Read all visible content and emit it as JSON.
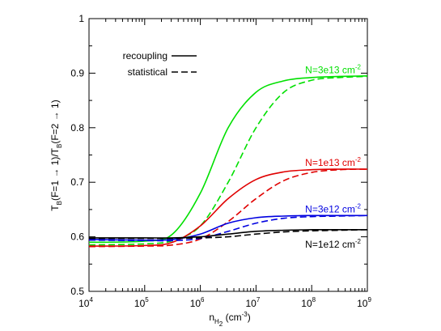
{
  "chart_data": {
    "type": "line",
    "x_scale": "log",
    "xlim": [
      10000,
      1000000000
    ],
    "ylim": [
      0.5,
      1.0
    ],
    "xlabel": {
      "base": "n",
      "subscript": "H",
      "subsubscript": "2",
      "units": " (cm",
      "units_exp": "-3",
      "units_end": ")"
    },
    "ylabel": "T_B(F=1 → 1)/T_B(F=2 → 1)",
    "ylabel_parts": {
      "t1": "T",
      "b1": "B",
      "m1": "(F=1 → 1)/T",
      "b2": "B",
      "m2": "(F=2 → 1)"
    },
    "x_ticks": [
      {
        "value": 10000,
        "base": "10",
        "exp": "4"
      },
      {
        "value": 100000,
        "base": "10",
        "exp": "5"
      },
      {
        "value": 1000000,
        "base": "10",
        "exp": "6"
      },
      {
        "value": 10000000,
        "base": "10",
        "exp": "7"
      },
      {
        "value": 100000000,
        "base": "10",
        "exp": "8"
      },
      {
        "value": 1000000000,
        "base": "10",
        "exp": "9"
      }
    ],
    "y_ticks": [
      {
        "value": 0.5,
        "label": "0.5"
      },
      {
        "value": 0.6,
        "label": "0.6"
      },
      {
        "value": 0.7,
        "label": "0.7"
      },
      {
        "value": 0.8,
        "label": "0.8"
      },
      {
        "value": 0.9,
        "label": "0.9"
      },
      {
        "value": 1.0,
        "label": "1"
      }
    ],
    "legend": {
      "placement": "top-left",
      "entries": [
        {
          "label": "recoupling",
          "style": "solid"
        },
        {
          "label": "statistical",
          "style": "dashed"
        }
      ]
    },
    "series": [
      {
        "key": "n3e13-recoupling",
        "color": "#00e000",
        "style": "solid",
        "x": [
          10000,
          100000,
          316228,
          1000000,
          3162278,
          10000000,
          31622777,
          100000000,
          316227766,
          1000000000
        ],
        "y": [
          0.59,
          0.592,
          0.605,
          0.68,
          0.8,
          0.865,
          0.886,
          0.892,
          0.894,
          0.895
        ]
      },
      {
        "key": "n3e13-statistical",
        "color": "#00e000",
        "style": "dashed",
        "x": [
          10000,
          100000,
          316228,
          1000000,
          3162278,
          10000000,
          31622777,
          100000000,
          316227766,
          1000000000
        ],
        "y": [
          0.585,
          0.587,
          0.593,
          0.62,
          0.7,
          0.8,
          0.865,
          0.887,
          0.892,
          0.894
        ]
      },
      {
        "key": "n1e13-recoupling",
        "color": "#e00000",
        "style": "solid",
        "x": [
          10000,
          100000,
          316228,
          1000000,
          3162278,
          10000000,
          31622777,
          100000000,
          316227766,
          1000000000
        ],
        "y": [
          0.583,
          0.584,
          0.59,
          0.62,
          0.67,
          0.705,
          0.719,
          0.723,
          0.724,
          0.724
        ]
      },
      {
        "key": "n1e13-statistical",
        "color": "#e00000",
        "style": "dashed",
        "x": [
          10000,
          100000,
          316228,
          1000000,
          3162278,
          10000000,
          31622777,
          100000000,
          316227766,
          1000000000
        ],
        "y": [
          0.582,
          0.583,
          0.585,
          0.596,
          0.628,
          0.67,
          0.703,
          0.718,
          0.723,
          0.724
        ]
      },
      {
        "key": "n3e12-recoupling",
        "color": "#0000e0",
        "style": "solid",
        "x": [
          10000,
          100000,
          316228,
          1000000,
          3162278,
          10000000,
          31622777,
          100000000,
          316227766,
          1000000000
        ],
        "y": [
          0.595,
          0.594,
          0.595,
          0.605,
          0.625,
          0.635,
          0.638,
          0.639,
          0.639,
          0.639
        ]
      },
      {
        "key": "n3e12-statistical",
        "color": "#0000e0",
        "style": "dashed",
        "x": [
          10000,
          100000,
          316228,
          1000000,
          3162278,
          10000000,
          31622777,
          100000000,
          316227766,
          1000000000
        ],
        "y": [
          0.594,
          0.593,
          0.593,
          0.597,
          0.61,
          0.625,
          0.634,
          0.637,
          0.638,
          0.639
        ]
      },
      {
        "key": "n1e12-recoupling",
        "color": "#000000",
        "style": "solid",
        "x": [
          10000,
          100000,
          316228,
          1000000,
          3162278,
          10000000,
          31622777,
          100000000,
          316227766,
          1000000000
        ],
        "y": [
          0.598,
          0.598,
          0.598,
          0.6,
          0.605,
          0.61,
          0.612,
          0.613,
          0.613,
          0.613
        ]
      },
      {
        "key": "n1e12-statistical",
        "color": "#000000",
        "style": "dashed",
        "x": [
          10000,
          100000,
          316228,
          1000000,
          3162278,
          10000000,
          31622777,
          100000000,
          316227766,
          1000000000
        ],
        "y": [
          0.597,
          0.597,
          0.597,
          0.598,
          0.6,
          0.605,
          0.609,
          0.611,
          0.612,
          0.613
        ]
      }
    ],
    "annotations": [
      {
        "key": "n3e13",
        "text": "N=3e13 cm",
        "exp": "-2",
        "color": "#00e000",
        "x": 100000000,
        "y": 0.9
      },
      {
        "key": "n1e13",
        "text": "N=1e13 cm",
        "exp": "-2",
        "color": "#e00000",
        "x": 100000000,
        "y": 0.73
      },
      {
        "key": "n3e12",
        "text": "N=3e12 cm",
        "exp": "-2",
        "color": "#0000e0",
        "x": 100000000,
        "y": 0.645
      },
      {
        "key": "n1e12",
        "text": "N=1e12 cm",
        "exp": "-2",
        "color": "#000000",
        "x": 100000000,
        "y": 0.58
      }
    ]
  }
}
